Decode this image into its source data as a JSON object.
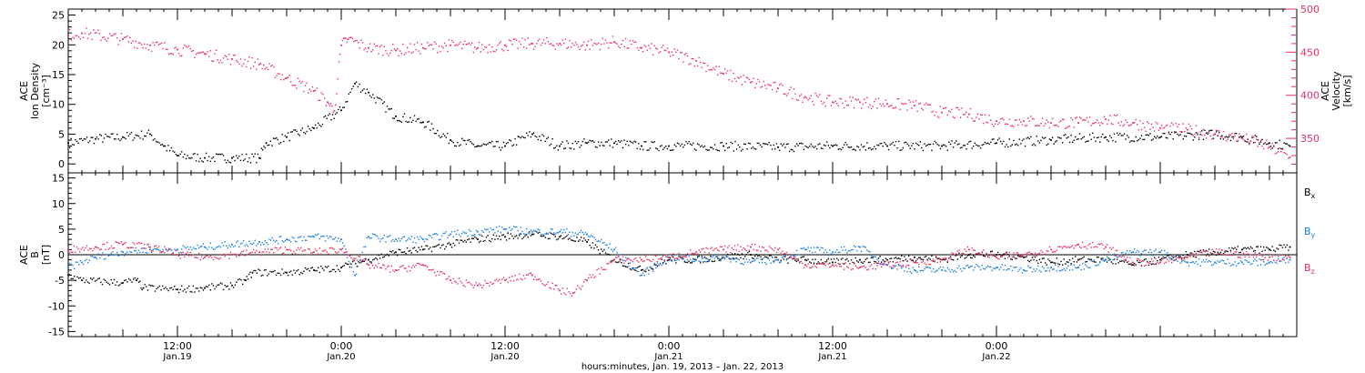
{
  "chart_data": [
    {
      "type": "scatter",
      "panel": "top",
      "ylabel_left": [
        "ACE",
        "Ion Density",
        "[cm⁻³]"
      ],
      "ylabel_right": [
        "ACE",
        "Velocity",
        "[km/s]"
      ],
      "ylim_left": [
        -1.5,
        26
      ],
      "yticks_left": [
        0,
        5,
        10,
        15,
        20,
        25
      ],
      "ylim_right": [
        310,
        500
      ],
      "yticks_right": [
        350,
        400,
        450,
        500
      ],
      "colors": {
        "density": "#000000",
        "velocity": "#e8305e"
      },
      "series": [
        {
          "axis": "left",
          "color": "#000000",
          "points": [
            [
              0.0,
              3.5
            ],
            [
              2.0,
              4.2
            ],
            [
              4.0,
              4.5
            ],
            [
              6.0,
              5.0
            ],
            [
              7.0,
              3.0
            ],
            [
              8.0,
              1.4
            ],
            [
              10.0,
              1.0
            ],
            [
              12.0,
              1.0
            ],
            [
              14.0,
              1.0
            ],
            [
              14.5,
              3.5
            ],
            [
              16.0,
              4.5
            ],
            [
              18.0,
              6.0
            ],
            [
              20.0,
              9.0
            ],
            [
              21.0,
              13.5
            ],
            [
              22.0,
              12.0
            ],
            [
              24.0,
              8.0
            ],
            [
              26.0,
              7.0
            ],
            [
              28.0,
              4.0
            ],
            [
              30.0,
              3.0
            ],
            [
              32.0,
              3.0
            ],
            [
              34.0,
              5.0
            ],
            [
              36.0,
              3.0
            ],
            [
              38.0,
              3.5
            ],
            [
              40.0,
              3.5
            ],
            [
              42.0,
              3.0
            ],
            [
              44.0,
              3.0
            ],
            [
              48.0,
              3.0
            ],
            [
              52.0,
              2.8
            ],
            [
              56.0,
              3.0
            ],
            [
              60.0,
              3.0
            ],
            [
              64.0,
              3.0
            ],
            [
              68.0,
              3.5
            ],
            [
              72.0,
              4.0
            ],
            [
              76.0,
              4.5
            ],
            [
              80.0,
              4.5
            ],
            [
              84.0,
              5.0
            ],
            [
              86.0,
              4.5
            ],
            [
              88.0,
              3.5
            ],
            [
              89.5,
              3.0
            ]
          ]
        },
        {
          "axis": "right",
          "color": "#e8305e",
          "points": [
            [
              0.0,
              470
            ],
            [
              1.0,
              472
            ],
            [
              4.0,
              465
            ],
            [
              6.0,
              458
            ],
            [
              8.0,
              453
            ],
            [
              10.0,
              448
            ],
            [
              12.0,
              442
            ],
            [
              14.0,
              436
            ],
            [
              16.0,
              420
            ],
            [
              18.0,
              405
            ],
            [
              19.0,
              392
            ],
            [
              19.5,
              382
            ],
            [
              20.0,
              458
            ],
            [
              20.5,
              465
            ],
            [
              22.0,
              455
            ],
            [
              24.0,
              452
            ],
            [
              26.0,
              455
            ],
            [
              28.0,
              458
            ],
            [
              30.0,
              455
            ],
            [
              32.0,
              458
            ],
            [
              34.0,
              460
            ],
            [
              36.0,
              460
            ],
            [
              38.0,
              458
            ],
            [
              40.0,
              462
            ],
            [
              42.0,
              455
            ],
            [
              44.0,
              450
            ],
            [
              46.0,
              440
            ],
            [
              48.0,
              425
            ],
            [
              50.0,
              415
            ],
            [
              52.0,
              408
            ],
            [
              54.0,
              398
            ],
            [
              56.0,
              392
            ],
            [
              58.0,
              392
            ],
            [
              60.0,
              390
            ],
            [
              62.0,
              388
            ],
            [
              64.0,
              380
            ],
            [
              66.0,
              378
            ],
            [
              68.0,
              370
            ],
            [
              70.0,
              370
            ],
            [
              72.0,
              368
            ],
            [
              74.0,
              368
            ],
            [
              76.0,
              372
            ],
            [
              78.0,
              368
            ],
            [
              80.0,
              362
            ],
            [
              82.0,
              360
            ],
            [
              84.0,
              355
            ],
            [
              86.0,
              350
            ],
            [
              88.0,
              340
            ],
            [
              89.5,
              328
            ]
          ]
        }
      ]
    },
    {
      "type": "scatter",
      "panel": "bottom",
      "ylabel_left": [
        "ACE",
        "B",
        "[nT]"
      ],
      "ylim": [
        -16,
        16
      ],
      "yticks": [
        -15,
        -10,
        -5,
        0,
        5,
        10,
        15
      ],
      "zero_line": true,
      "legend": [
        {
          "label": "B",
          "sub": "x",
          "color": "#000000"
        },
        {
          "label": "B",
          "sub": "y",
          "color": "#1e7fe0"
        },
        {
          "label": "B",
          "sub": "z",
          "color": "#e8305e"
        }
      ],
      "series": [
        {
          "name": "Bx",
          "color": "#000000",
          "points": [
            [
              0.0,
              -4.0
            ],
            [
              1.0,
              -5.0
            ],
            [
              4.0,
              -5.5
            ],
            [
              5.0,
              -5.0
            ],
            [
              5.5,
              -6.5
            ],
            [
              8.0,
              -6.8
            ],
            [
              10.0,
              -6.5
            ],
            [
              12.0,
              -6.0
            ],
            [
              13.0,
              -5.0
            ],
            [
              13.5,
              -3.5
            ],
            [
              16.0,
              -3.5
            ],
            [
              18.0,
              -3.0
            ],
            [
              20.0,
              -2.5
            ],
            [
              22.0,
              -1.0
            ],
            [
              24.0,
              0.5
            ],
            [
              26.0,
              1.0
            ],
            [
              28.0,
              2.0
            ],
            [
              30.0,
              3.0
            ],
            [
              32.0,
              3.5
            ],
            [
              34.0,
              4.0
            ],
            [
              36.0,
              3.5
            ],
            [
              38.0,
              2.5
            ],
            [
              40.0,
              -1.0
            ],
            [
              42.0,
              -3.0
            ],
            [
              44.0,
              -1.0
            ],
            [
              46.0,
              -1.0
            ],
            [
              48.0,
              -0.5
            ],
            [
              50.0,
              0.0
            ],
            [
              52.0,
              -1.0
            ],
            [
              54.0,
              -1.0
            ],
            [
              56.0,
              -1.5
            ],
            [
              58.0,
              -1.0
            ],
            [
              60.0,
              -1.0
            ],
            [
              62.0,
              -0.5
            ],
            [
              64.0,
              -1.0
            ],
            [
              66.0,
              0.0
            ],
            [
              68.0,
              0.0
            ],
            [
              70.0,
              -0.5
            ],
            [
              72.0,
              -1.5
            ],
            [
              74.0,
              -1.0
            ],
            [
              76.0,
              -1.0
            ],
            [
              78.0,
              -2.0
            ],
            [
              80.0,
              -1.0
            ],
            [
              82.0,
              0.0
            ],
            [
              84.0,
              0.5
            ],
            [
              86.0,
              1.0
            ],
            [
              88.0,
              1.0
            ],
            [
              89.5,
              1.5
            ]
          ]
        },
        {
          "name": "By",
          "color": "#1e7fe0",
          "points": [
            [
              0.0,
              -2.5
            ],
            [
              1.0,
              -1.5
            ],
            [
              2.0,
              -0.5
            ],
            [
              4.0,
              0.5
            ],
            [
              6.0,
              1.0
            ],
            [
              8.0,
              1.0
            ],
            [
              10.0,
              1.5
            ],
            [
              12.0,
              2.0
            ],
            [
              14.0,
              2.5
            ],
            [
              16.0,
              3.0
            ],
            [
              18.0,
              3.5
            ],
            [
              20.0,
              3.0
            ],
            [
              21.0,
              -4.0
            ],
            [
              22.0,
              3.5
            ],
            [
              24.0,
              3.0
            ],
            [
              26.0,
              3.0
            ],
            [
              28.0,
              4.0
            ],
            [
              30.0,
              4.5
            ],
            [
              32.0,
              5.0
            ],
            [
              34.0,
              4.5
            ],
            [
              36.0,
              4.5
            ],
            [
              38.0,
              4.0
            ],
            [
              40.0,
              1.0
            ],
            [
              42.0,
              -4.0
            ],
            [
              44.0,
              -0.5
            ],
            [
              46.0,
              -1.0
            ],
            [
              48.0,
              -0.5
            ],
            [
              50.0,
              -1.5
            ],
            [
              52.0,
              -1.0
            ],
            [
              54.0,
              1.0
            ],
            [
              56.0,
              0.5
            ],
            [
              58.0,
              1.5
            ],
            [
              60.0,
              -2.0
            ],
            [
              62.0,
              -3.0
            ],
            [
              64.0,
              -3.0
            ],
            [
              66.0,
              -2.5
            ],
            [
              68.0,
              -2.5
            ],
            [
              70.0,
              -3.0
            ],
            [
              72.0,
              -2.5
            ],
            [
              74.0,
              -2.5
            ],
            [
              76.0,
              -1.0
            ],
            [
              78.0,
              0.5
            ],
            [
              80.0,
              0.5
            ],
            [
              82.0,
              -1.5
            ],
            [
              84.0,
              -1.5
            ],
            [
              86.0,
              -1.5
            ],
            [
              88.0,
              -1.5
            ],
            [
              89.5,
              -1.0
            ]
          ]
        },
        {
          "name": "Bz",
          "color": "#e8305e",
          "points": [
            [
              0.0,
              1.0
            ],
            [
              2.0,
              1.5
            ],
            [
              4.0,
              2.0
            ],
            [
              6.0,
              1.5
            ],
            [
              8.0,
              0.0
            ],
            [
              10.0,
              -0.5
            ],
            [
              12.0,
              0.0
            ],
            [
              14.0,
              0.5
            ],
            [
              16.0,
              1.0
            ],
            [
              18.0,
              0.5
            ],
            [
              20.0,
              1.0
            ],
            [
              22.0,
              -2.0
            ],
            [
              24.0,
              -3.0
            ],
            [
              26.0,
              -2.0
            ],
            [
              28.0,
              -5.0
            ],
            [
              30.0,
              -6.0
            ],
            [
              32.0,
              -5.0
            ],
            [
              34.0,
              -4.0
            ],
            [
              36.0,
              -7.0
            ],
            [
              37.0,
              -7.5
            ],
            [
              38.0,
              -5.0
            ],
            [
              40.0,
              -1.0
            ],
            [
              42.0,
              -1.0
            ],
            [
              44.0,
              -0.5
            ],
            [
              46.0,
              0.5
            ],
            [
              48.0,
              1.0
            ],
            [
              50.0,
              1.5
            ],
            [
              52.0,
              1.0
            ],
            [
              54.0,
              -2.0
            ],
            [
              56.0,
              -2.0
            ],
            [
              58.0,
              -2.5
            ],
            [
              60.0,
              -2.0
            ],
            [
              62.0,
              -1.5
            ],
            [
              64.0,
              -1.0
            ],
            [
              66.0,
              1.0
            ],
            [
              68.0,
              -0.5
            ],
            [
              70.0,
              0.0
            ],
            [
              72.0,
              1.0
            ],
            [
              74.0,
              2.0
            ],
            [
              76.0,
              1.5
            ],
            [
              78.0,
              -1.5
            ],
            [
              80.0,
              -1.5
            ],
            [
              82.0,
              -0.5
            ],
            [
              84.0,
              0.5
            ],
            [
              86.0,
              0.0
            ],
            [
              88.0,
              -0.5
            ],
            [
              89.5,
              -0.5
            ]
          ]
        }
      ]
    }
  ],
  "x_axis": {
    "xlim": [
      0,
      90
    ],
    "ticks": [
      {
        "x": 8,
        "time": "12:00",
        "date": "Jan.19"
      },
      {
        "x": 20,
        "time": "0:00",
        "date": "Jan.20"
      },
      {
        "x": 32,
        "time": "12:00",
        "date": "Jan.20"
      },
      {
        "x": 44,
        "time": "0:00",
        "date": "Jan.21"
      },
      {
        "x": 56,
        "time": "12:00",
        "date": "Jan.21"
      },
      {
        "x": 68,
        "time": "0:00",
        "date": "Jan.22"
      }
    ],
    "xlabel": "hours:minutes, Jan. 19, 2013 – Jan. 22, 2013"
  }
}
